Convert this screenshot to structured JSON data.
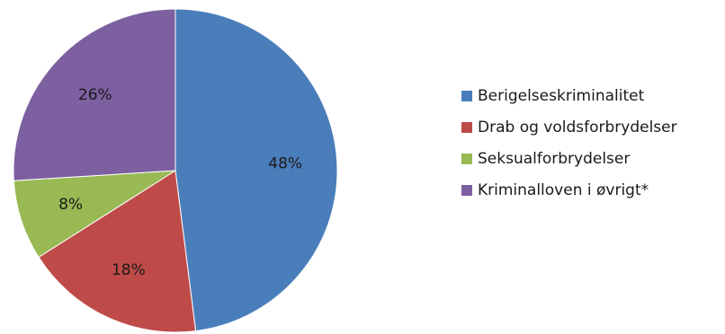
{
  "chart_data": {
    "type": "pie",
    "title": "",
    "legend_position": "right",
    "slices": [
      {
        "label": "Berigelseskriminalitet",
        "value": 48,
        "display": "48%",
        "color": "#4a7ebb"
      },
      {
        "label": "Drab og voldsforbrydelser",
        "value": 18,
        "display": "18%",
        "color": "#be4b48"
      },
      {
        "label": "Seksualforbrydelser",
        "value": 8,
        "display": "8%",
        "color": "#98b954"
      },
      {
        "label": "Kriminalloven i øvrigt*",
        "value": 26,
        "display": "26%",
        "color": "#7d60a0"
      }
    ]
  }
}
